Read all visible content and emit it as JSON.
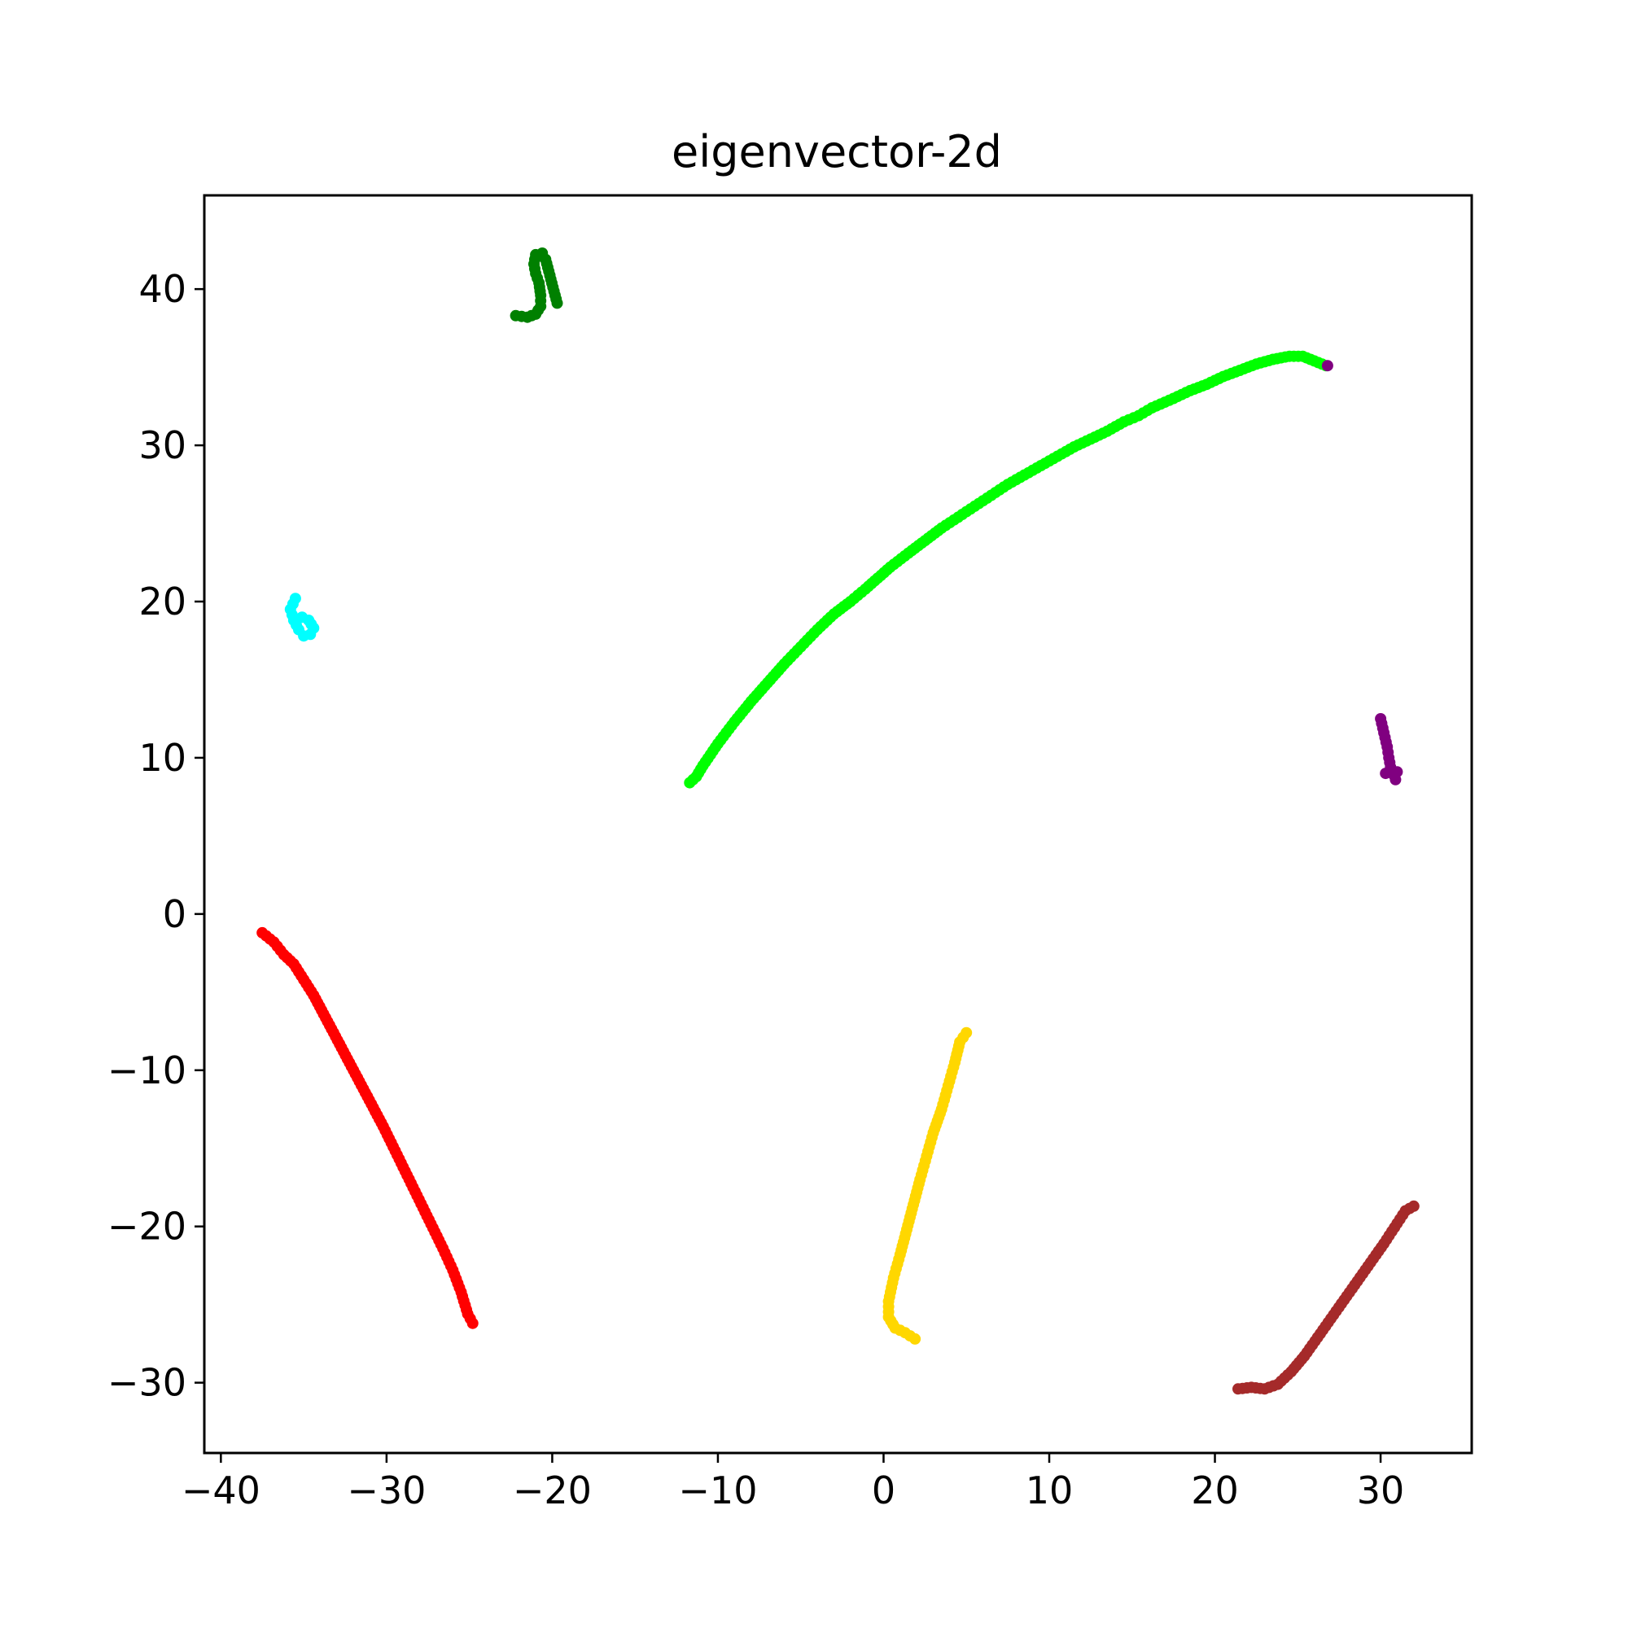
{
  "chart_data": {
    "type": "scatter",
    "title": "eigenvector-2d",
    "xlabel": "",
    "ylabel": "",
    "xlim": [
      -41,
      35.5
    ],
    "ylim": [
      -34.5,
      46
    ],
    "grid": false,
    "legend": "none",
    "xticks": [
      {
        "value": -40,
        "label": "−40"
      },
      {
        "value": -30,
        "label": "−30"
      },
      {
        "value": -20,
        "label": "−20"
      },
      {
        "value": -10,
        "label": "−10"
      },
      {
        "value": 0,
        "label": "0"
      },
      {
        "value": 10,
        "label": "10"
      },
      {
        "value": 20,
        "label": "20"
      },
      {
        "value": 30,
        "label": "30"
      }
    ],
    "yticks": [
      {
        "value": -30,
        "label": "−30"
      },
      {
        "value": -20,
        "label": "−20"
      },
      {
        "value": -10,
        "label": "−10"
      },
      {
        "value": 0,
        "label": "0"
      },
      {
        "value": 10,
        "label": "10"
      },
      {
        "value": 20,
        "label": "20"
      },
      {
        "value": 30,
        "label": "30"
      },
      {
        "value": 40,
        "label": "40"
      }
    ],
    "series": [
      {
        "name": "red",
        "color": "#ff0000",
        "points": [
          [
            -37.5,
            -1.2
          ],
          [
            -36.8,
            -1.8
          ],
          [
            -36.2,
            -2.6
          ],
          [
            -35.6,
            -3.2
          ],
          [
            -35.0,
            -4.2
          ],
          [
            -34.4,
            -5.2
          ],
          [
            -33.8,
            -6.4
          ],
          [
            -33.2,
            -7.6
          ],
          [
            -32.6,
            -8.8
          ],
          [
            -32.0,
            -10.0
          ],
          [
            -31.4,
            -11.2
          ],
          [
            -30.8,
            -12.4
          ],
          [
            -30.2,
            -13.6
          ],
          [
            -29.6,
            -14.9
          ],
          [
            -29.0,
            -16.2
          ],
          [
            -28.4,
            -17.5
          ],
          [
            -27.8,
            -18.8
          ],
          [
            -27.2,
            -20.1
          ],
          [
            -26.6,
            -21.4
          ],
          [
            -26.0,
            -22.8
          ],
          [
            -25.5,
            -24.2
          ],
          [
            -25.1,
            -25.6
          ],
          [
            -24.8,
            -26.2
          ]
        ]
      },
      {
        "name": "cyan",
        "color": "#00ffff",
        "points": [
          [
            -35.5,
            20.2
          ],
          [
            -35.8,
            19.5
          ],
          [
            -35.6,
            18.8
          ],
          [
            -35.3,
            18.2
          ],
          [
            -35.0,
            17.8
          ],
          [
            -34.6,
            17.9
          ],
          [
            -34.4,
            18.3
          ],
          [
            -34.7,
            18.8
          ],
          [
            -35.1,
            19.0
          ]
        ]
      },
      {
        "name": "green",
        "color": "#008000",
        "points": [
          [
            -22.2,
            38.3
          ],
          [
            -21.5,
            38.2
          ],
          [
            -21.0,
            38.4
          ],
          [
            -20.7,
            38.9
          ],
          [
            -20.7,
            39.6
          ],
          [
            -20.8,
            40.4
          ],
          [
            -21.0,
            41.0
          ],
          [
            -21.1,
            41.6
          ],
          [
            -21.0,
            42.2
          ],
          [
            -20.6,
            42.3
          ],
          [
            -20.4,
            41.9
          ],
          [
            -19.7,
            39.1
          ]
        ]
      },
      {
        "name": "lime",
        "color": "#00ff00",
        "points": [
          [
            -11.7,
            8.4
          ],
          [
            -11.3,
            8.8
          ],
          [
            -10.9,
            9.5
          ],
          [
            -10.0,
            10.9
          ],
          [
            -9.0,
            12.3
          ],
          [
            -8.0,
            13.6
          ],
          [
            -7.0,
            14.8
          ],
          [
            -6.0,
            16.0
          ],
          [
            -5.0,
            17.1
          ],
          [
            -4.0,
            18.2
          ],
          [
            -3.0,
            19.2
          ],
          [
            -2.0,
            20.0
          ],
          [
            -1.1,
            20.8
          ],
          [
            0.4,
            22.2
          ],
          [
            1.5,
            23.1
          ],
          [
            2.5,
            23.9
          ],
          [
            3.5,
            24.7
          ],
          [
            4.5,
            25.4
          ],
          [
            5.5,
            26.1
          ],
          [
            6.5,
            26.8
          ],
          [
            7.5,
            27.5
          ],
          [
            8.5,
            28.1
          ],
          [
            9.5,
            28.7
          ],
          [
            10.5,
            29.3
          ],
          [
            11.5,
            29.9
          ],
          [
            12.5,
            30.4
          ],
          [
            13.5,
            30.9
          ],
          [
            14.5,
            31.5
          ],
          [
            15.4,
            31.9
          ],
          [
            16.2,
            32.4
          ],
          [
            17.5,
            33.0
          ],
          [
            18.5,
            33.5
          ],
          [
            19.5,
            33.9
          ],
          [
            20.5,
            34.4
          ],
          [
            21.5,
            34.8
          ],
          [
            22.5,
            35.2
          ],
          [
            23.5,
            35.5
          ],
          [
            24.5,
            35.7
          ],
          [
            25.3,
            35.7
          ],
          [
            26.0,
            35.4
          ],
          [
            26.7,
            35.1
          ]
        ]
      },
      {
        "name": "purple",
        "color": "#800080",
        "points": [
          [
            30.0,
            12.5
          ],
          [
            30.2,
            11.6
          ],
          [
            30.4,
            10.7
          ],
          [
            30.5,
            10.0
          ],
          [
            30.6,
            9.4
          ],
          [
            30.8,
            8.9
          ],
          [
            30.9,
            8.6
          ],
          [
            31.0,
            9.1
          ],
          [
            30.3,
            9.0
          ],
          [
            26.8,
            35.1
          ]
        ]
      },
      {
        "name": "gold",
        "color": "#ffd700",
        "points": [
          [
            5.0,
            -7.6
          ],
          [
            4.6,
            -8.2
          ],
          [
            4.3,
            -9.5
          ],
          [
            3.9,
            -11.0
          ],
          [
            3.5,
            -12.5
          ],
          [
            3.0,
            -14.0
          ],
          [
            2.6,
            -15.5
          ],
          [
            2.2,
            -17.0
          ],
          [
            1.8,
            -18.6
          ],
          [
            1.4,
            -20.2
          ],
          [
            1.0,
            -21.8
          ],
          [
            0.6,
            -23.3
          ],
          [
            0.3,
            -24.8
          ],
          [
            0.3,
            -25.8
          ],
          [
            0.7,
            -26.5
          ],
          [
            1.3,
            -26.8
          ],
          [
            1.9,
            -27.2
          ]
        ]
      },
      {
        "name": "brown",
        "color": "#a52a2a",
        "points": [
          [
            21.4,
            -30.4
          ],
          [
            22.2,
            -30.3
          ],
          [
            23.0,
            -30.4
          ],
          [
            23.8,
            -30.1
          ],
          [
            24.6,
            -29.3
          ],
          [
            25.4,
            -28.3
          ],
          [
            26.2,
            -27.1
          ],
          [
            27.0,
            -25.9
          ],
          [
            27.8,
            -24.7
          ],
          [
            28.6,
            -23.5
          ],
          [
            29.4,
            -22.3
          ],
          [
            30.2,
            -21.1
          ],
          [
            31.0,
            -19.8
          ],
          [
            31.5,
            -19.0
          ],
          [
            32.0,
            -18.7
          ]
        ]
      }
    ]
  }
}
